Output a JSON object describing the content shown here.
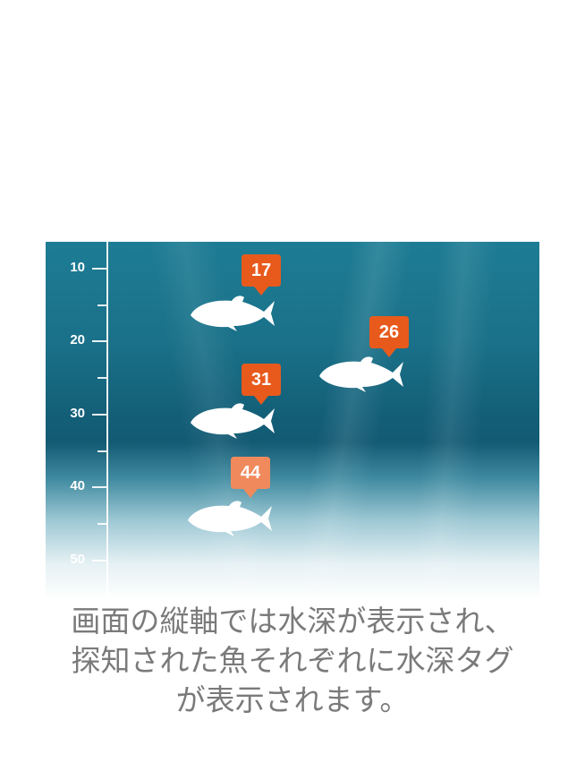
{
  "depth_axis": {
    "labels": [
      "10",
      "20",
      "30",
      "40",
      "50"
    ]
  },
  "fish_tags": [
    {
      "depth_label": "17"
    },
    {
      "depth_label": "26"
    },
    {
      "depth_label": "31"
    },
    {
      "depth_label": "44"
    }
  ],
  "caption": {
    "line1": "画面の縦軸では水深が表示され、",
    "line2": "探知された魚それぞれに水深タグ",
    "line3": "が表示されます。"
  },
  "colors": {
    "tag_orange": "#e85a1c",
    "tag_faded": "#f08a5c",
    "water_top": "#1d7c94",
    "water_mid": "#135a73",
    "caption_gray": "#7a7a7a"
  }
}
